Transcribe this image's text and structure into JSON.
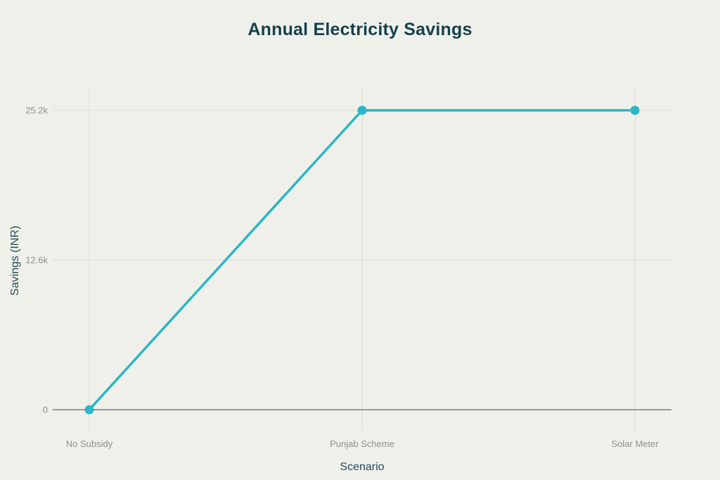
{
  "chart_data": {
    "type": "line",
    "title": "Annual Electricity Savings",
    "xlabel": "Scenario",
    "ylabel": "Savings (INR)",
    "categories": [
      "No Subsidy",
      "Punjab Scheme",
      "Solar Meter"
    ],
    "values": [
      0,
      25200,
      25200
    ],
    "ylim": [
      0,
      25200
    ],
    "yticks": [
      {
        "value": 0,
        "label": "0"
      },
      {
        "value": 12600,
        "label": "12.6k"
      },
      {
        "value": 25200,
        "label": "25.2k"
      }
    ],
    "grid": true,
    "legend": false,
    "colors": {
      "background": "#f0f0ea",
      "line": "#2eb5c7",
      "marker": "#2eb5c7",
      "gridline": "#dddcd6",
      "zero_line": "#7c7c7a",
      "tick_label": "#8f918e",
      "title": "#15424d",
      "axis_title": "#234d57"
    }
  }
}
